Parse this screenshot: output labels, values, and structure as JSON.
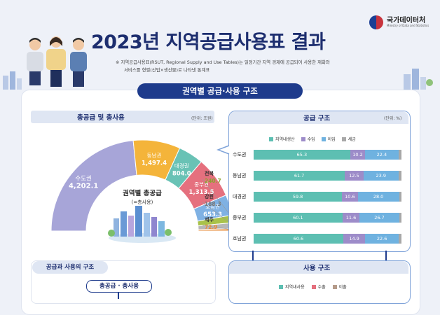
{
  "brand": {
    "name": "국가데이터처",
    "sub": "Ministry of Data and Statistics"
  },
  "title": "2023년 지역공급사용표 결과",
  "note_line1": "※ 지역공급사용표(RSUT, Regional Supply and Use Tables)는 일정기간 지역 경제에 공급되어 사용한 재화와",
  "note_line2": "서비스를 형렬(산업×생산물)로 나타낸 통계표",
  "section_title": "권역별 공급·사용 구조",
  "left_panel": {
    "title": "총공급 및 총사용",
    "unit": "(단위: 조원)",
    "center_label": "권역별 총공급",
    "center_sub": "(=총사용)"
  },
  "chart_data": [
    {
      "type": "pie",
      "title": "총공급 및 총사용",
      "unit": "(단위: 조원)",
      "categories": [
        "수도권",
        "동남권",
        "대경권",
        "중부권",
        "호남권",
        "전북",
        "강원",
        "제주"
      ],
      "values": [
        4202.1,
        1497.4,
        804.0,
        1313.5,
        653.3,
        240.7,
        188.3,
        72.9
      ],
      "value_labels": [
        "4,202.1",
        "1,497.4",
        "804.0",
        "1,313.5",
        "653.3",
        "240.7",
        "188.3",
        "72.9"
      ],
      "colors": [
        "#a7a5d8",
        "#f4b43a",
        "#69c2b5",
        "#e5707e",
        "#7fb1e3",
        "#a9c24a",
        "#b7b7b7",
        "#e9944a"
      ],
      "label_colors": [
        "#ffffff",
        "#ffffff",
        "#ffffff",
        "#ffffff",
        "#ffffff",
        "#8aa530",
        "#777777",
        "#e98a3a"
      ]
    },
    {
      "type": "bar",
      "stacked": true,
      "orientation": "horizontal",
      "title": "공급 구조",
      "unit": "(단위: %)",
      "categories": [
        "수도권",
        "동남권",
        "대경권",
        "중부권",
        "호남권"
      ],
      "series": [
        {
          "name": "지역내생산",
          "values": [
            65.3,
            61.7,
            59.8,
            60.1,
            60.6
          ],
          "color": "#5dbfb2"
        },
        {
          "name": "수입",
          "values": [
            10.2,
            12.5,
            10.6,
            11.6,
            14.9
          ],
          "color": "#9d8cc9"
        },
        {
          "name": "이입",
          "values": [
            22.4,
            23.9,
            28.0,
            26.7,
            22.6
          ],
          "color": "#6fb2e0"
        },
        {
          "name": "세금",
          "values": [
            2.1,
            1.9,
            1.6,
            1.6,
            1.9
          ],
          "color": "#a8a8a8"
        }
      ],
      "xlim": [
        0,
        100
      ]
    },
    {
      "type": "bar",
      "stacked": true,
      "orientation": "horizontal",
      "title": "사용 구조",
      "series": [
        {
          "name": "지역내사용",
          "color": "#5dbfb2"
        },
        {
          "name": "수출",
          "color": "#e5707e"
        },
        {
          "name": "이출",
          "color": "#b59b8a"
        }
      ]
    }
  ],
  "left_bottom": {
    "pill": "공급과 사용의 구조",
    "inner": "총공급 · 총사용"
  }
}
